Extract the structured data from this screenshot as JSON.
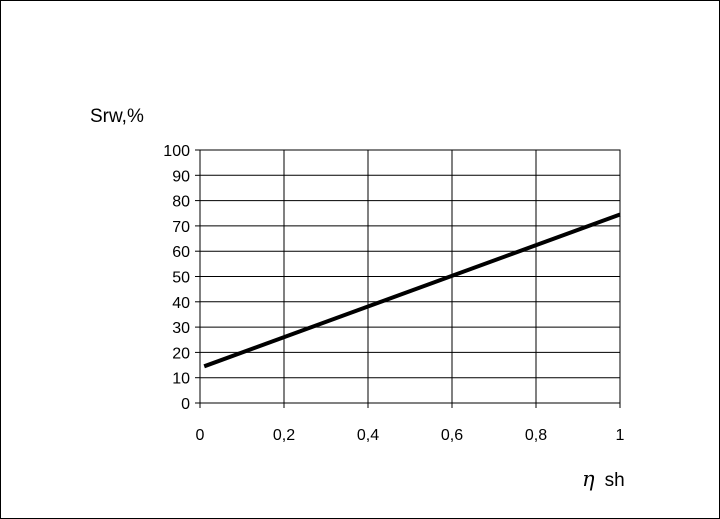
{
  "chart_data": {
    "type": "line",
    "title": "",
    "ylabel": "Srw,%",
    "xlabel_symbol": "η",
    "xlabel_suffix": "sh",
    "xlim": [
      0,
      1
    ],
    "ylim": [
      0,
      100
    ],
    "x_ticks": [
      0,
      0.2,
      0.4,
      0.6,
      0.8,
      1
    ],
    "x_tick_labels": [
      "0",
      "0,2",
      "0,4",
      "0,6",
      "0,8",
      "1"
    ],
    "y_ticks": [
      0,
      10,
      20,
      30,
      40,
      50,
      60,
      70,
      80,
      90,
      100
    ],
    "y_tick_labels": [
      "0",
      "10",
      "20",
      "30",
      "40",
      "50",
      "60",
      "70",
      "80",
      "90",
      "100"
    ],
    "grid": true,
    "line_color": "#000000",
    "series": [
      {
        "x": [
          0.01,
          1
        ],
        "y": [
          14.5,
          74.5
        ]
      }
    ]
  }
}
